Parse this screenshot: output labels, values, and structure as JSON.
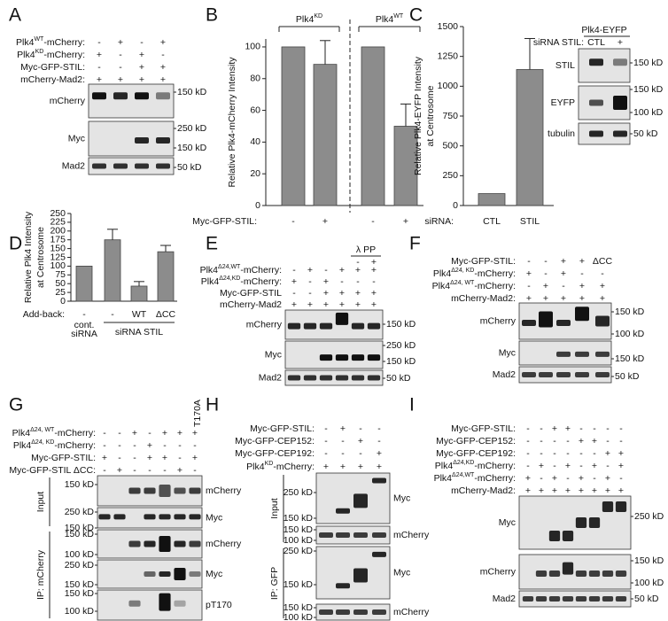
{
  "panel_letters": [
    "A",
    "B",
    "C",
    "D",
    "E",
    "F",
    "G",
    "H",
    "I"
  ],
  "chart_data": [
    {
      "type": "bar",
      "ylabel": [
        "Relative Plk4-mCherry Intensity"
      ],
      "groups": [
        [
          "Plk4",
          {
            "sup": "KD"
          }
        ],
        [
          "Plk4",
          {
            "sup": "WT"
          }
        ]
      ],
      "xrow_label": "Myc-GFP-STIL:",
      "categories": [
        "-",
        "+",
        "-",
        "+"
      ],
      "values": [
        100,
        89,
        100,
        50
      ],
      "errors": [
        null,
        15,
        null,
        14
      ],
      "color": "#8c8c8c",
      "ylim": [
        0,
        105
      ],
      "yticks": [
        0,
        20,
        40,
        60,
        80,
        100
      ]
    },
    {
      "type": "bar",
      "ylabel": [
        "Relative Plk4-EYFP Intensity",
        "at Centrosome"
      ],
      "xrow_label": "siRNA:",
      "categories": [
        "CTL",
        "STIL"
      ],
      "values": [
        100,
        1140
      ],
      "errors": [
        null,
        260
      ],
      "color": "#8c8c8c",
      "ylim": [
        0,
        1500
      ],
      "yticks": [
        0,
        250,
        500,
        750,
        1000,
        1250,
        1500
      ]
    },
    {
      "type": "bar",
      "ylabel": [
        "Relative Plk4 Intensity",
        "at Centrosome"
      ],
      "xrow_label": "Add-back:",
      "categories": [
        "-",
        "-",
        "WT",
        "ΔCC"
      ],
      "control_label": [
        "cont.",
        "siRNA"
      ],
      "bracket_label": "siRNA STIL",
      "values": [
        100,
        175,
        43,
        141
      ],
      "errors": [
        null,
        30,
        13,
        18
      ],
      "color": "#8c8c8c",
      "ylim": [
        0,
        250
      ],
      "yticks": [
        0,
        25,
        50,
        75,
        100,
        125,
        150,
        175,
        200,
        225,
        250
      ]
    }
  ],
  "blots": {
    "A": {
      "rows": [
        {
          "label": [
            "Plk4",
            {
              "sup": "WT"
            },
            "-mCherry:"
          ],
          "signs": [
            "-",
            "+",
            "-",
            "+"
          ]
        },
        {
          "label": [
            "Plk4",
            {
              "sup": "KD"
            },
            "-mCherry:"
          ],
          "signs": [
            "+",
            "-",
            "+",
            "-"
          ]
        },
        {
          "label": "Myc-GFP-STIL:",
          "signs": [
            "-",
            "-",
            "+",
            "+"
          ]
        },
        {
          "label": "mCherry-Mad2:",
          "signs": [
            "+",
            "+",
            "+",
            "+"
          ]
        }
      ],
      "strips": [
        {
          "name": "mCherry",
          "markers": [
            "150 kD"
          ]
        },
        {
          "name": "Myc",
          "markers": [
            "250 kD",
            "150 kD"
          ]
        },
        {
          "name": "Mad2",
          "markers": [
            "50 kD"
          ]
        }
      ]
    },
    "C": {
      "header": "Plk4-EYFP",
      "rows": [
        {
          "label": "siRNA STIL:",
          "signs": [
            "CTL",
            "+"
          ]
        }
      ],
      "strips": [
        {
          "name": "STIL",
          "markers": [
            "150 kD"
          ]
        },
        {
          "name": "EYFP",
          "markers": [
            "150 kD",
            "100 kD"
          ]
        },
        {
          "name": "tubulin",
          "markers": [
            "50 kD"
          ]
        }
      ]
    },
    "E": {
      "lambda": {
        "label": "λ PP",
        "signs": [
          "-",
          "+"
        ]
      },
      "rows": [
        {
          "label": [
            "Plk4",
            {
              "sup": "Δ24,WT"
            },
            "-mCherry:"
          ],
          "signs": [
            "-",
            "+",
            "-",
            "+",
            "+",
            "+"
          ]
        },
        {
          "label": [
            "Plk4",
            {
              "sup": "Δ24,KD"
            },
            "-mCherry:"
          ],
          "signs": [
            "+",
            "-",
            "+",
            "-",
            "-",
            "-"
          ]
        },
        {
          "label": "Myc-GFP-STIL",
          "signs": [
            "-",
            "-",
            "+",
            "+",
            "+",
            "+"
          ]
        },
        {
          "label": "mCherry-Mad2",
          "signs": [
            "+",
            "+",
            "+",
            "+",
            "+",
            "+"
          ]
        }
      ],
      "strips": [
        {
          "name": "mCherry",
          "markers": [
            "150 kD"
          ]
        },
        {
          "name": "Myc",
          "markers": [
            "250 kD",
            "150 kD"
          ]
        },
        {
          "name": "Mad2",
          "markers": [
            "50 kD"
          ]
        }
      ]
    },
    "F": {
      "rows": [
        {
          "label": "Myc-GFP-STIL:",
          "signs": [
            "-",
            "-",
            "+",
            "+",
            "ΔCC"
          ]
        },
        {
          "label": [
            "Plk4",
            {
              "sup": "Δ24, KD"
            },
            "-mCherry:"
          ],
          "signs": [
            "+",
            "-",
            "+",
            "-",
            "-"
          ]
        },
        {
          "label": [
            "Plk4",
            {
              "sup": "Δ24, WT"
            },
            "-mCherry:"
          ],
          "signs": [
            "-",
            "+",
            "-",
            "+",
            "+"
          ]
        },
        {
          "label": "mCherry-Mad2:",
          "signs": [
            "+",
            "+",
            "+",
            "+",
            "+"
          ]
        }
      ],
      "strips": [
        {
          "name": "mCherry",
          "markers": [
            "150 kD",
            "100 kD"
          ]
        },
        {
          "name": "Myc",
          "markers": [
            "150 kD"
          ]
        },
        {
          "name": "Mad2",
          "markers": [
            "50 kD"
          ]
        }
      ]
    },
    "G": {
      "mutant": "T170A",
      "groups": [
        "Input",
        "IP: mCherry"
      ],
      "rows": [
        {
          "label": [
            "Plk4",
            {
              "sup": "Δ24, WT"
            },
            "-mCherry:"
          ],
          "signs": [
            "-",
            "-",
            "+",
            "-",
            "+",
            "+",
            "+"
          ]
        },
        {
          "label": [
            "Plk4",
            {
              "sup": "Δ24, KD"
            },
            "-mCherry:"
          ],
          "signs": [
            "-",
            "-",
            "-",
            "+",
            "-",
            "-",
            "-"
          ]
        },
        {
          "label": "Myc-GFP-STIL:",
          "signs": [
            "+",
            "-",
            "-",
            "+",
            "+",
            "-",
            "+"
          ]
        },
        {
          "label": "Myc-GFP-STIL ΔCC:",
          "signs": [
            "-",
            "+",
            "-",
            "-",
            "-",
            "+",
            "-"
          ]
        }
      ],
      "strips": [
        {
          "name": "mCherry",
          "markers": [
            "150 kD"
          ]
        },
        {
          "name": "Myc",
          "markers": [
            "250 kD",
            "150 kD"
          ]
        },
        {
          "name": "mCherry",
          "markers": [
            "150 kD",
            "100 kD"
          ]
        },
        {
          "name": "Myc",
          "markers": [
            "250 kD",
            "150 kD"
          ]
        },
        {
          "name": "pT170",
          "markers": [
            "150 kD",
            "100 kD"
          ]
        }
      ]
    },
    "H": {
      "groups": [
        "Input",
        "IP: GFP"
      ],
      "rows": [
        {
          "label": "Myc-GFP-STIL:",
          "signs": [
            "-",
            "+",
            "-",
            "-"
          ]
        },
        {
          "label": "Myc-GFP-CEP152:",
          "signs": [
            "-",
            "-",
            "+",
            "-"
          ]
        },
        {
          "label": "Myc-GFP-CEP192:",
          "signs": [
            "-",
            "-",
            "-",
            "+"
          ]
        },
        {
          "label": [
            "Plk4",
            {
              "sup": "KD"
            },
            "-mCherry:"
          ],
          "signs": [
            "+",
            "+",
            "+",
            "+"
          ]
        }
      ],
      "strips": [
        {
          "name": "Myc",
          "markers": [
            "250 kD",
            "150 kD"
          ]
        },
        {
          "name": "mCherry",
          "markers": [
            "150 kD",
            "100 kD"
          ]
        },
        {
          "name": "Myc",
          "markers": [
            "250 kD",
            "150 kD"
          ]
        },
        {
          "name": "mCherry",
          "markers": [
            "150 kD",
            "100 kD"
          ]
        }
      ]
    },
    "I": {
      "rows": [
        {
          "label": "Myc-GFP-STIL:",
          "signs": [
            "-",
            "-",
            "+",
            "+",
            "-",
            "-",
            "-",
            "-"
          ]
        },
        {
          "label": "Myc-GFP-CEP152:",
          "signs": [
            "-",
            "-",
            "-",
            "-",
            "+",
            "+",
            "-",
            "-"
          ]
        },
        {
          "label": "Myc-GFP-CEP192:",
          "signs": [
            "-",
            "-",
            "-",
            "-",
            "-",
            "-",
            "+",
            "+"
          ]
        },
        {
          "label": [
            "Plk4",
            {
              "sup": "Δ24,KD"
            },
            "-mCherry:"
          ],
          "signs": [
            "-",
            "+",
            "-",
            "+",
            "-",
            "+",
            "-",
            "+"
          ]
        },
        {
          "label": [
            "Plk4",
            {
              "sup": "Δ24,WT"
            },
            "-mCherry:"
          ],
          "signs": [
            "+",
            "-",
            "+",
            "-",
            "+",
            "-",
            "+",
            "-"
          ]
        },
        {
          "label": "mCherry-Mad2:",
          "signs": [
            "+",
            "+",
            "+",
            "+",
            "+",
            "+",
            "+",
            "+"
          ]
        }
      ],
      "strips": [
        {
          "name": "Myc",
          "markers": [
            "250 kD"
          ]
        },
        {
          "name": "mCherry",
          "markers": [
            "150 kD",
            "100 kD"
          ]
        },
        {
          "name": "Mad2",
          "markers": [
            "50 kD"
          ]
        }
      ]
    }
  }
}
